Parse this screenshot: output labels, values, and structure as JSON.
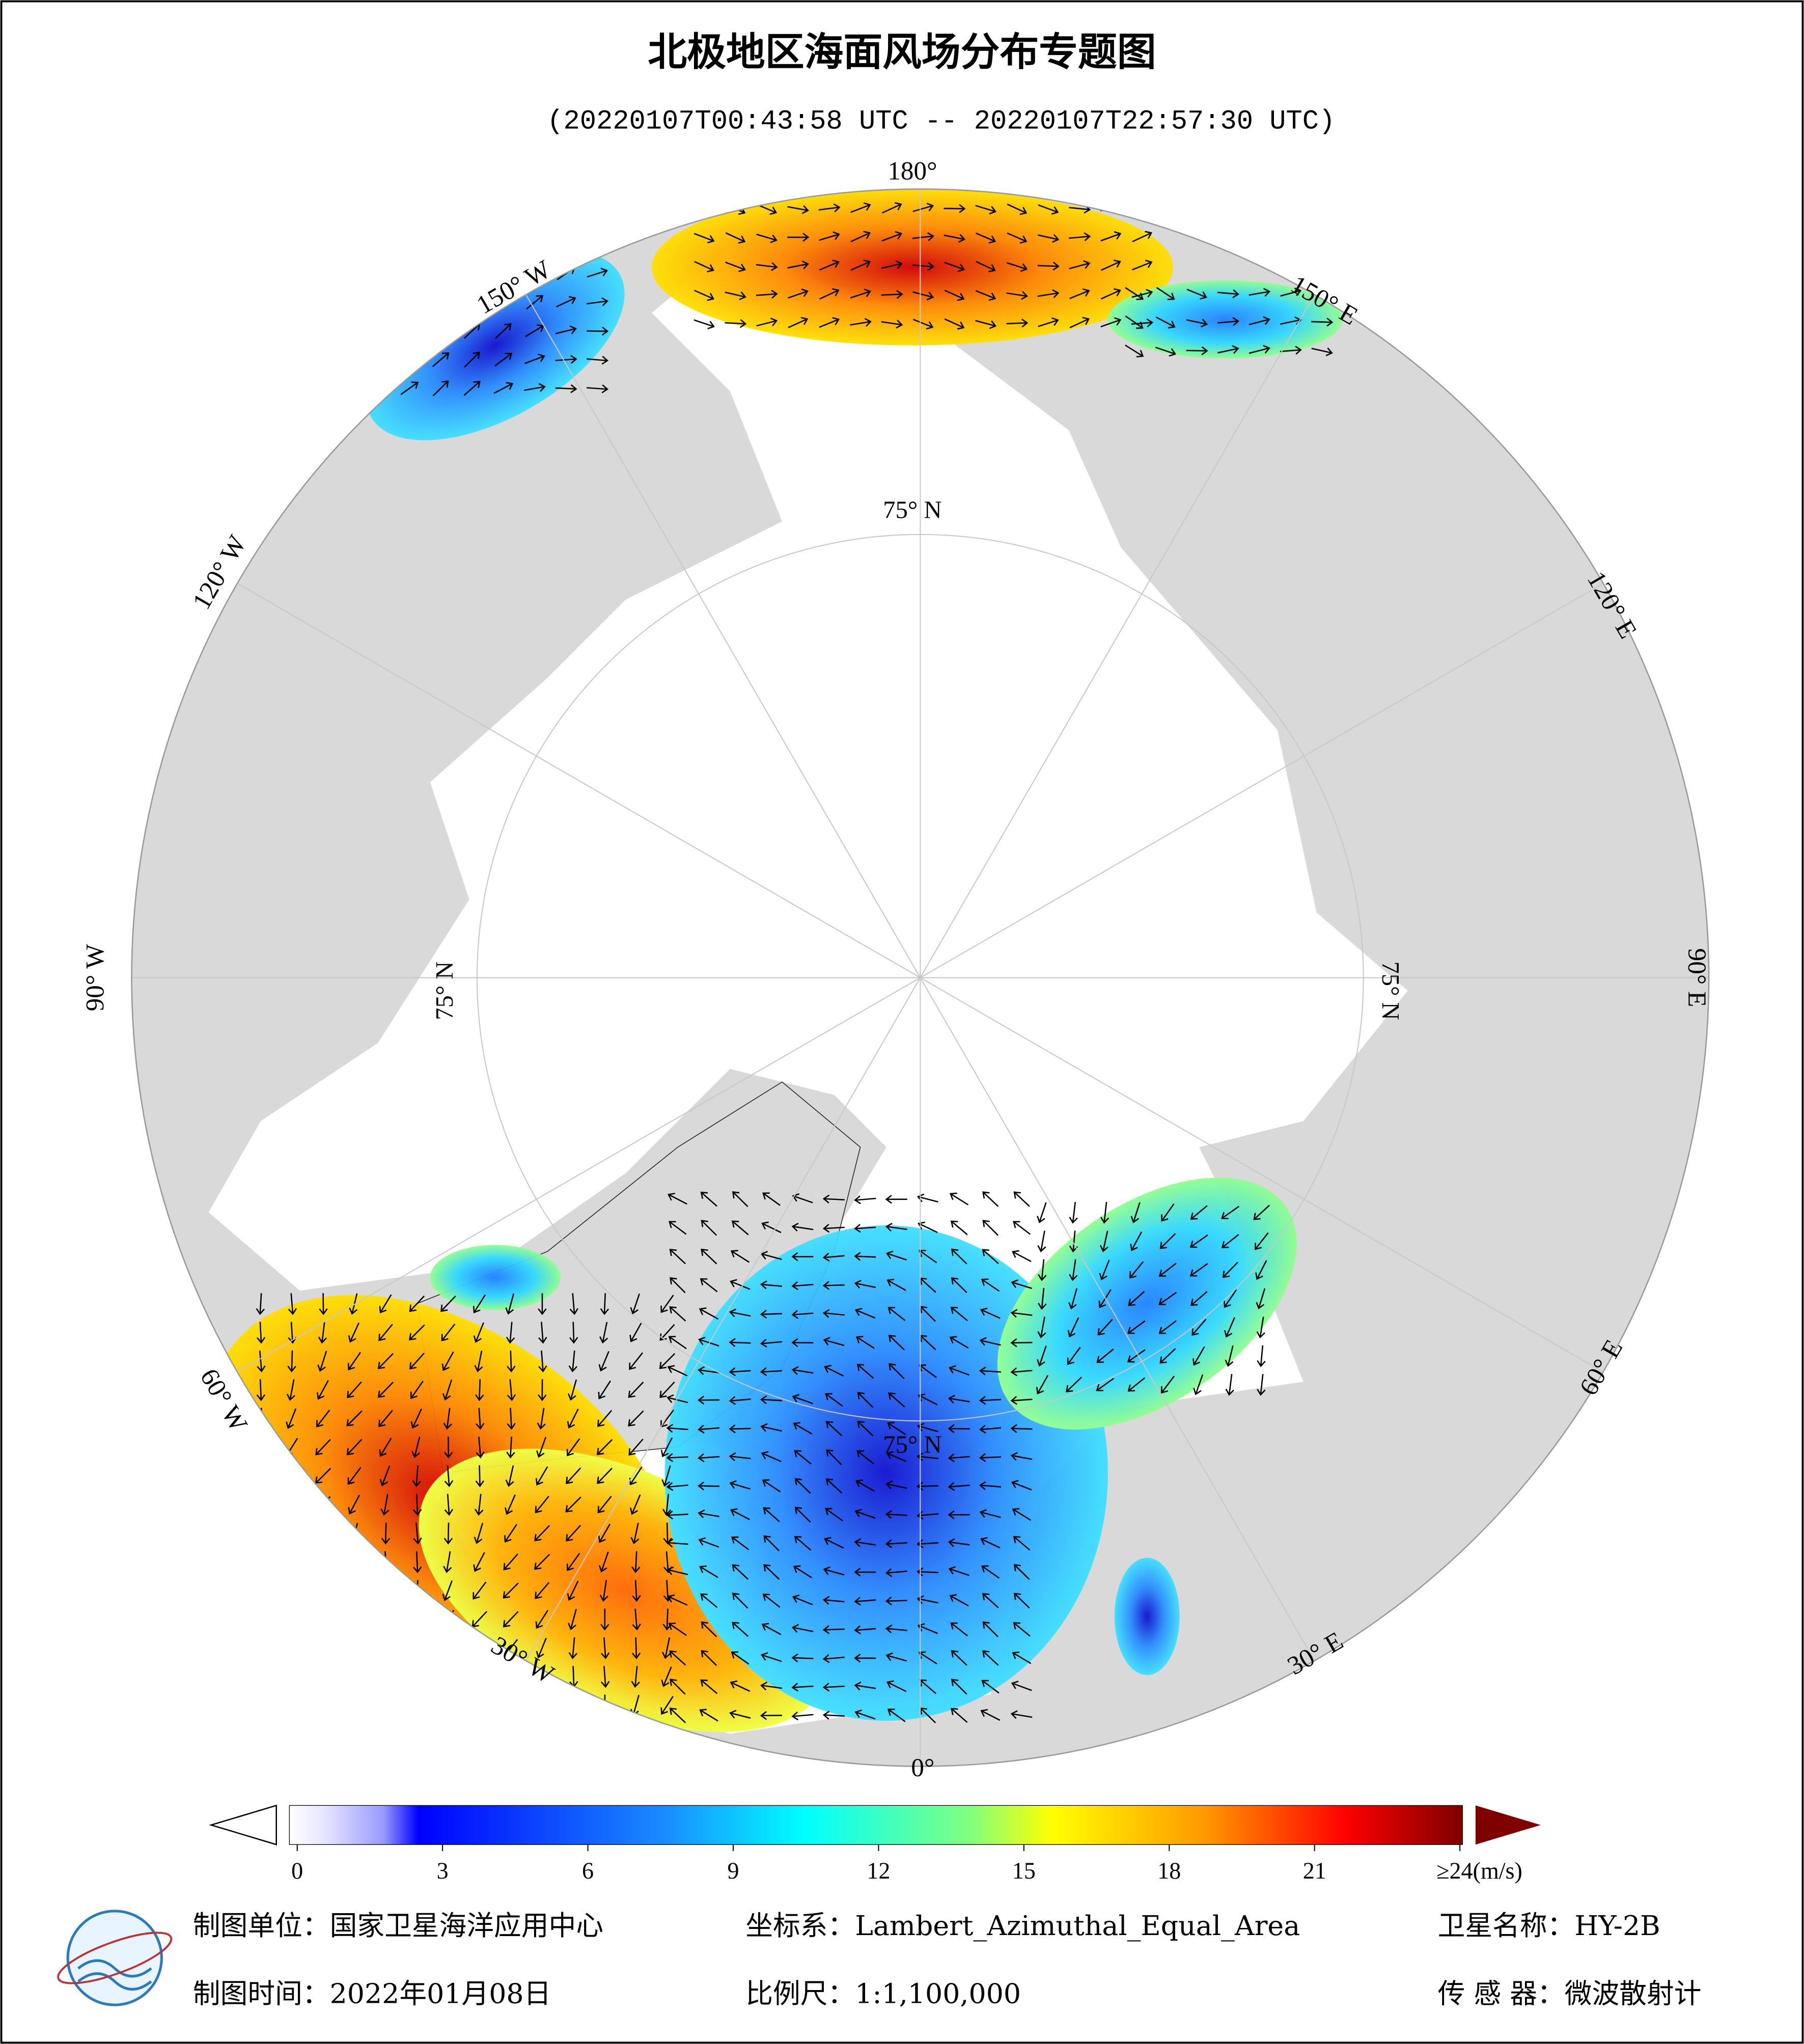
{
  "header": {
    "title": "北极地区海面风场分布专题图",
    "subtitle": "(20220107T00:43:58 UTC -- 20220107T22:57:30 UTC)"
  },
  "map": {
    "longitude_labels": [
      "180°",
      "150° W",
      "120° W",
      "90° W",
      "60° W",
      "30° W",
      "0°",
      "30° E",
      "60° E",
      "90° E",
      "120° E",
      "150° E"
    ],
    "latitude_labels": [
      "75° N",
      "75° N",
      "75° N",
      "75° N"
    ]
  },
  "colorbar": {
    "range": [
      0,
      24
    ],
    "ticks": [
      0,
      3,
      6,
      9,
      12,
      15,
      18,
      21,
      {
        "value": 24,
        "label": "≥24(m/s)"
      }
    ]
  },
  "footer": {
    "rows": [
      [
        "制图单位：国家卫星海洋应用中心",
        "坐标系：Lambert_Azimuthal_Equal_Area",
        "卫星名称：HY-2B"
      ],
      [
        "制图时间：2022年01月08日",
        "比例尺：1:1,100,000",
        "传 感 器：微波散射计"
      ]
    ]
  }
}
